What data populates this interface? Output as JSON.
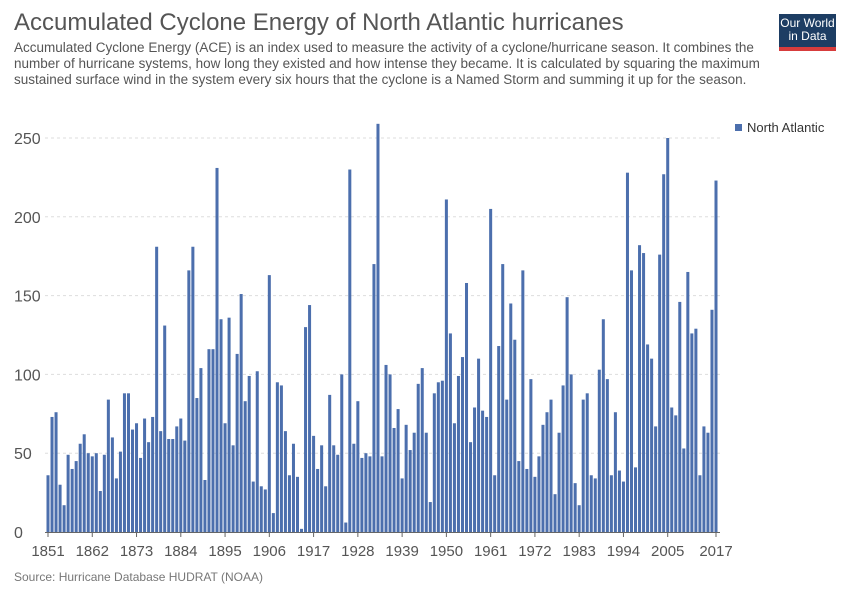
{
  "header": {
    "title": "Accumulated Cyclone Energy of North Atlantic hurricanes",
    "subtitle": "Accumulated Cyclone Energy (ACE) is an index used to measure the activity of a cyclone/hurricane season. It combines the number of hurricane systems, how long they existed and how intense they became. It is calculated by squaring the maximum sustained surface wind in the system every six hours that the cyclone is a Named Storm and summing it up for the season."
  },
  "logo": {
    "line1": "Our World",
    "line2": "in Data"
  },
  "footer": {
    "source": "Source: Hurricane Database HUDRAT (NOAA)"
  },
  "colors": {
    "bar": "#4c6fad",
    "grid": "#dddddd",
    "text": "#555555",
    "axis": "#666666"
  },
  "chart_data": {
    "type": "bar",
    "title": "Accumulated Cyclone Energy of North Atlantic hurricanes",
    "x_start": 1851,
    "x_end": 2017,
    "x_ticks": [
      "1851",
      "1862",
      "1873",
      "1884",
      "1895",
      "1906",
      "1917",
      "1928",
      "1939",
      "1950",
      "1961",
      "1972",
      "1983",
      "1994",
      "2005",
      "2017"
    ],
    "y_ticks": [
      "0",
      "50",
      "100",
      "150",
      "200",
      "250"
    ],
    "ylim": [
      0,
      260
    ],
    "grid": true,
    "legend_position": "top-right",
    "series": [
      {
        "name": "North Atlantic",
        "values": [
          36,
          73,
          76,
          30,
          17,
          49,
          40,
          45,
          56,
          62,
          50,
          48,
          50,
          26,
          49,
          84,
          60,
          34,
          51,
          88,
          88,
          65,
          69,
          47,
          72,
          57,
          73,
          181,
          64,
          131,
          59,
          59,
          67,
          72,
          58,
          166,
          181,
          85,
          104,
          33,
          116,
          116,
          231,
          135,
          69,
          136,
          55,
          113,
          151,
          83,
          99,
          32,
          102,
          29,
          27,
          163,
          12,
          95,
          93,
          64,
          36,
          56,
          35,
          2,
          130,
          144,
          61,
          40,
          55,
          29,
          87,
          55,
          49,
          100,
          6,
          230,
          56,
          83,
          47,
          50,
          48,
          170,
          259,
          48,
          106,
          100,
          66,
          78,
          34,
          68,
          52,
          63,
          94,
          104,
          63,
          19,
          88,
          95,
          96,
          211,
          126,
          69,
          99,
          111,
          158,
          57,
          79,
          110,
          77,
          73,
          205,
          36,
          118,
          170,
          84,
          145,
          122,
          45,
          166,
          40,
          97,
          35,
          48,
          68,
          76,
          84,
          24,
          63,
          93,
          149,
          100,
          31,
          17,
          84,
          88,
          36,
          34,
          103,
          135,
          97,
          36,
          76,
          39,
          32,
          228,
          166,
          41,
          182,
          177,
          119,
          110,
          67,
          176,
          227,
          250,
          79,
          74,
          146,
          53,
          165,
          126,
          129,
          36,
          67,
          63,
          141,
          223
        ]
      }
    ]
  }
}
